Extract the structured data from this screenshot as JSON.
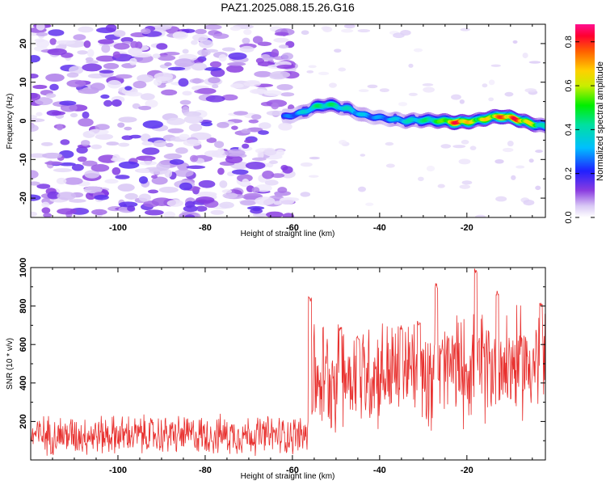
{
  "title": "PAZ1.2025.088.15.26.G16",
  "chart_data": [
    {
      "type": "heatmap",
      "xlabel": "Height of straight line (km)",
      "ylabel": "Frequency (Hz)",
      "xlim": [
        -120,
        -2
      ],
      "ylim": [
        -25,
        25
      ],
      "x_ticks": [
        -100,
        -80,
        -60,
        -40,
        -20
      ],
      "y_ticks": [
        -20,
        -10,
        0,
        10,
        20
      ],
      "colorbar": {
        "label": "Normalized spectral amplitude",
        "range": [
          0,
          0.88
        ],
        "ticks": [
          0.0,
          0.2,
          0.4,
          0.6,
          0.8
        ]
      },
      "ridge_track": {
        "x": [
          -62,
          -58,
          -55,
          -52,
          -50,
          -47,
          -44,
          -40,
          -37,
          -34,
          -30,
          -26,
          -22,
          -18,
          -15,
          -12,
          -9,
          -6,
          -2
        ],
        "frequency": [
          1,
          2,
          3.5,
          4.2,
          3.8,
          3.0,
          1.5,
          0.8,
          0.4,
          0.0,
          0.2,
          0.0,
          -0.4,
          0.0,
          0.8,
          1.2,
          0.6,
          -0.5,
          -1.5
        ],
        "amplitude": [
          0.25,
          0.35,
          0.45,
          0.5,
          0.45,
          0.4,
          0.35,
          0.3,
          0.35,
          0.4,
          0.45,
          0.55,
          0.88,
          0.6,
          0.7,
          0.8,
          0.85,
          0.7,
          0.4
        ]
      },
      "noise_region": {
        "x_range": [
          -120,
          -60
        ],
        "frequency_range": [
          -25,
          25
        ],
        "amplitude_max": 0.15
      },
      "grid": false
    },
    {
      "type": "line",
      "xlabel": "Height of straight line (km)",
      "ylabel": "SNR (10 * v/v)",
      "xlim": [
        -120,
        -2
      ],
      "ylim": [
        0,
        1000
      ],
      "x_ticks": [
        -100,
        -80,
        -60,
        -40,
        -20
      ],
      "y_ticks": [
        200,
        400,
        600,
        800,
        1000
      ],
      "series": [
        {
          "color": "#e8312f",
          "segments": [
            {
              "x_range": [
                -120,
                -56
              ],
              "mean": 130,
              "spread": 120
            },
            {
              "x_range": [
                -56,
                -2
              ],
              "mean": 450,
              "spread": 330
            }
          ],
          "peaks": [
            {
              "x": -56,
              "y": 850
            },
            {
              "x": -49,
              "y": 700
            },
            {
              "x": -45,
              "y": 650
            },
            {
              "x": -35,
              "y": 700
            },
            {
              "x": -31,
              "y": 730
            },
            {
              "x": -27,
              "y": 920
            },
            {
              "x": -18,
              "y": 1000
            },
            {
              "x": -13,
              "y": 880
            },
            {
              "x": -3,
              "y": 820
            }
          ]
        }
      ],
      "grid": false
    }
  ]
}
